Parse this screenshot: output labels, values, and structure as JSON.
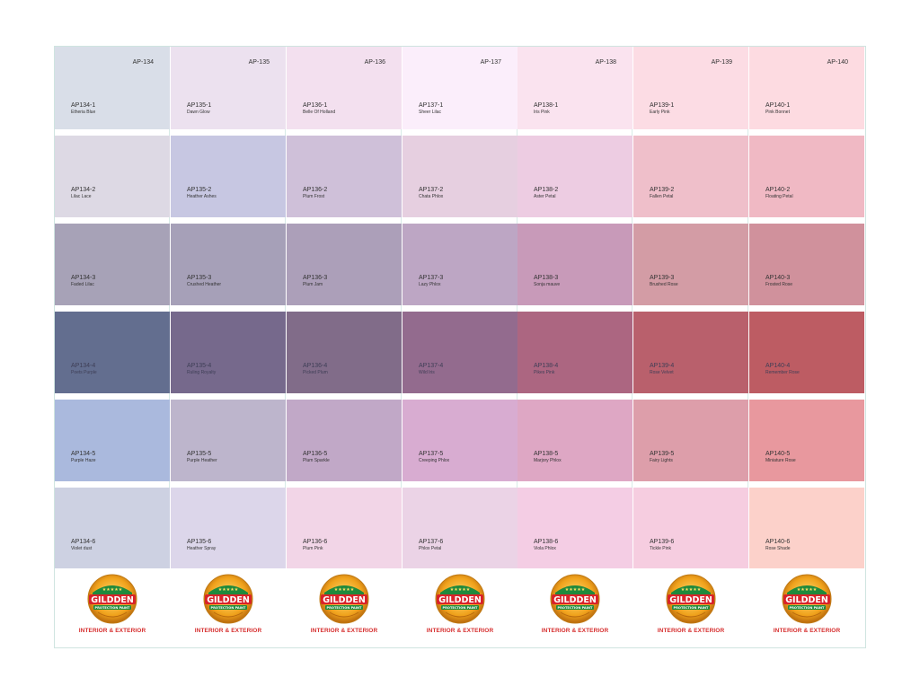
{
  "brand": {
    "name": "GILDDEN",
    "sub": "PROTECTION PAINT",
    "tagline": "INTERIOR & EXTERIOR",
    "stars": "★★★★★"
  },
  "columns": [
    {
      "code": "AP-134",
      "chips": [
        {
          "code": "AP134-1",
          "name": "Etheria Blue",
          "color": "#d9dee8"
        },
        {
          "code": "AP134-2",
          "name": "Lilac Lace",
          "color": "#ddd9e4"
        },
        {
          "code": "AP134-3",
          "name": "Faded Lilac",
          "color": "#a7a2b7"
        },
        {
          "code": "AP134-4",
          "name": "Poets Purple",
          "color": "#636e8f"
        },
        {
          "code": "AP134-5",
          "name": "Purple Haze",
          "color": "#aab9dd"
        },
        {
          "code": "AP134-6",
          "name": "Violet dust",
          "color": "#cdd1e2"
        }
      ]
    },
    {
      "code": "AP-135",
      "chips": [
        {
          "code": "AP135-1",
          "name": "Dawn Glow",
          "color": "#ece1ef"
        },
        {
          "code": "AP135-2",
          "name": "Heather Ashes",
          "color": "#c7c7e2"
        },
        {
          "code": "AP135-3",
          "name": "Crushed Heather",
          "color": "#a6a0b8"
        },
        {
          "code": "AP135-4",
          "name": "Ruling Royalty",
          "color": "#76698c"
        },
        {
          "code": "AP135-5",
          "name": "Purple Heather",
          "color": "#bdb5cc"
        },
        {
          "code": "AP135-6",
          "name": "Heather Spray",
          "color": "#dcd6ea"
        }
      ]
    },
    {
      "code": "AP-136",
      "chips": [
        {
          "code": "AP136-1",
          "name": "Belle Of Holland",
          "color": "#f3e0ef"
        },
        {
          "code": "AP136-2",
          "name": "Plum Frost",
          "color": "#cfc0d9"
        },
        {
          "code": "AP136-3",
          "name": "Plum Jam",
          "color": "#ac9fb9"
        },
        {
          "code": "AP136-4",
          "name": "Picked Plum",
          "color": "#816c89"
        },
        {
          "code": "AP136-5",
          "name": "Plum Sparkle",
          "color": "#c1a8c7"
        },
        {
          "code": "AP136-6",
          "name": "Plum Pink",
          "color": "#f2d5e7"
        }
      ]
    },
    {
      "code": "AP-137",
      "chips": [
        {
          "code": "AP137-1",
          "name": "Sheer Lilac",
          "color": "#fbeefb"
        },
        {
          "code": "AP137-2",
          "name": "Chata Phlox",
          "color": "#e6cfe0"
        },
        {
          "code": "AP137-3",
          "name": "Lazy Phlox",
          "color": "#bda6c4"
        },
        {
          "code": "AP137-4",
          "name": "Wild Iris",
          "color": "#936b8e"
        },
        {
          "code": "AP137-5",
          "name": "Creeping Phlox",
          "color": "#d8acd1"
        },
        {
          "code": "AP137-6",
          "name": "Phlox Petal",
          "color": "#ebd3e6"
        }
      ]
    },
    {
      "code": "AP-138",
      "chips": [
        {
          "code": "AP138-1",
          "name": "Iris Pink",
          "color": "#fae3ef"
        },
        {
          "code": "AP138-2",
          "name": "Aster Petal",
          "color": "#edcce2"
        },
        {
          "code": "AP138-3",
          "name": "Sonja mauve",
          "color": "#c89ab9"
        },
        {
          "code": "AP138-4",
          "name": "Pikes Pink",
          "color": "#ac6681"
        },
        {
          "code": "AP138-5",
          "name": "Marjory Phlox",
          "color": "#dea7c4"
        },
        {
          "code": "AP138-6",
          "name": "Viola Phlox",
          "color": "#f4cde4"
        }
      ]
    },
    {
      "code": "AP-139",
      "chips": [
        {
          "code": "AP139-1",
          "name": "Early Pink",
          "color": "#fcdce4"
        },
        {
          "code": "AP139-2",
          "name": "Fallen Petal",
          "color": "#efbfca"
        },
        {
          "code": "AP139-3",
          "name": "Brushed Rose",
          "color": "#d39ca5"
        },
        {
          "code": "AP139-4",
          "name": "Rose Velvet",
          "color": "#b9606c"
        },
        {
          "code": "AP139-5",
          "name": "Fairy Lights",
          "color": "#dd9eaa"
        },
        {
          "code": "AP139-6",
          "name": "Tickle Pink",
          "color": "#f6cde0"
        }
      ]
    },
    {
      "code": "AP-140",
      "chips": [
        {
          "code": "AP140-1",
          "name": "Pink Bonnet",
          "color": "#fddbe1"
        },
        {
          "code": "AP140-2",
          "name": "Floating Petal",
          "color": "#f0b9c4"
        },
        {
          "code": "AP140-3",
          "name": "Frosted Rose",
          "color": "#d0919c"
        },
        {
          "code": "AP140-4",
          "name": "Remember Rose",
          "color": "#bd5c63"
        },
        {
          "code": "AP140-5",
          "name": "Miniature Rose",
          "color": "#e8989e"
        },
        {
          "code": "AP140-6",
          "name": "Rose Shade",
          "color": "#fcd1ca"
        }
      ]
    }
  ]
}
